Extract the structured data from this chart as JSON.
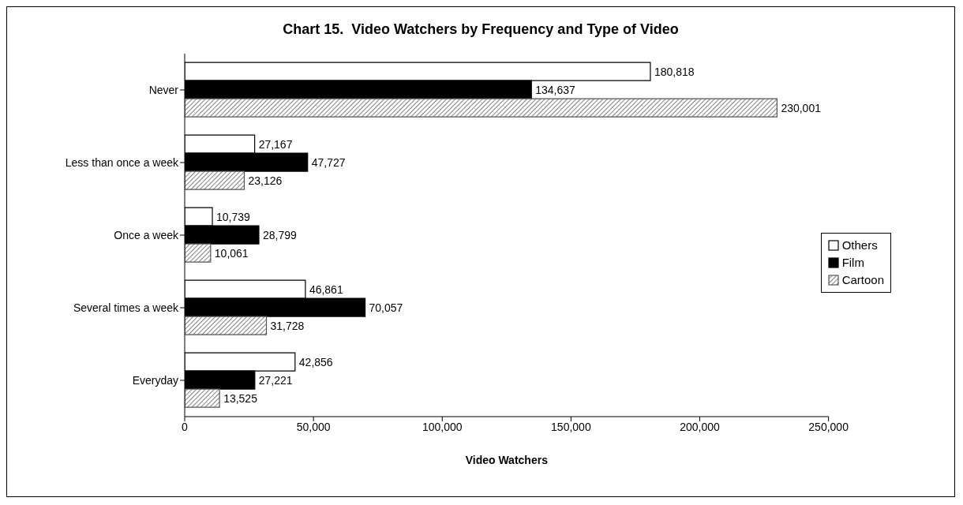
{
  "chart_data": {
    "type": "bar",
    "orientation": "horizontal",
    "title": "Chart 15.  Video Watchers by Frequency and Type of Video",
    "xlabel": "Video Watchers",
    "categories": [
      "Never",
      "Less than once a week",
      "Once a week",
      "Several times a week",
      "Everyday"
    ],
    "series": [
      {
        "name": "Others",
        "color": "#ffffff",
        "values": [
          180818,
          27167,
          10739,
          46861,
          42856
        ],
        "value_labels": [
          "180,818",
          "27,167",
          "10,739",
          "46,861",
          "42,856"
        ]
      },
      {
        "name": "Film",
        "color": "#000000",
        "values": [
          134637,
          47727,
          28799,
          70057,
          27221
        ],
        "value_labels": [
          "134,637",
          "47,727",
          "28,799",
          "70,057",
          "27,221"
        ]
      },
      {
        "name": "Cartoon",
        "color": "#555555",
        "values": [
          230001,
          23126,
          10061,
          31728,
          13525
        ],
        "value_labels": [
          "230,001",
          "23,126",
          "10,061",
          "31,728",
          "13,525"
        ]
      }
    ],
    "xlim": [
      0,
      250000
    ],
    "xticks": [
      0,
      {
        "value": 50000,
        "label": "50,000"
      },
      {
        "value": 100000,
        "label": "100,000"
      },
      {
        "value": 150000,
        "label": "150,000"
      },
      {
        "value": 200000,
        "label": "200,000"
      },
      {
        "value": 250000,
        "label": "250,000"
      }
    ],
    "grid": false,
    "legend": "right"
  }
}
